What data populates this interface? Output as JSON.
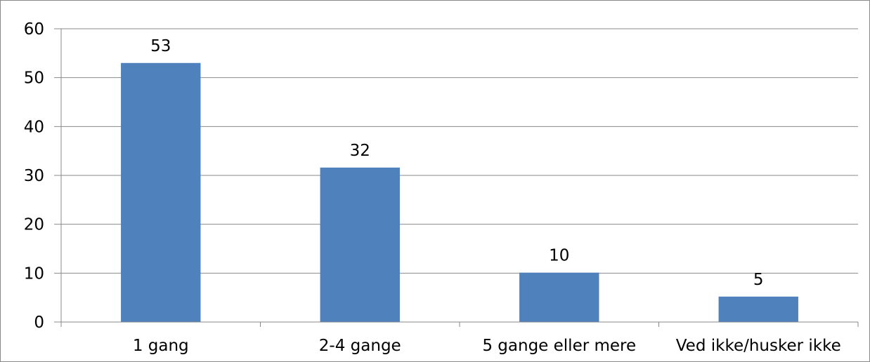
{
  "chart_data": {
    "type": "bar",
    "categories": [
      "1 gang",
      "2-4 gange",
      "5 gange eller mere",
      "Ved ikke/husker ikke"
    ],
    "values": [
      53,
      31.6,
      10.1,
      5.2
    ],
    "data_labels": [
      "53",
      "32",
      "10",
      "5"
    ],
    "yticks": [
      "0",
      "10",
      "20",
      "30",
      "40",
      "50",
      "60"
    ],
    "ylim": [
      0,
      60
    ],
    "title": "",
    "xlabel": "",
    "ylabel": "",
    "grid": true,
    "legend": "none",
    "colors": {
      "bar": "#4f81bd",
      "grid": "#898989",
      "axis": "#898989"
    }
  }
}
